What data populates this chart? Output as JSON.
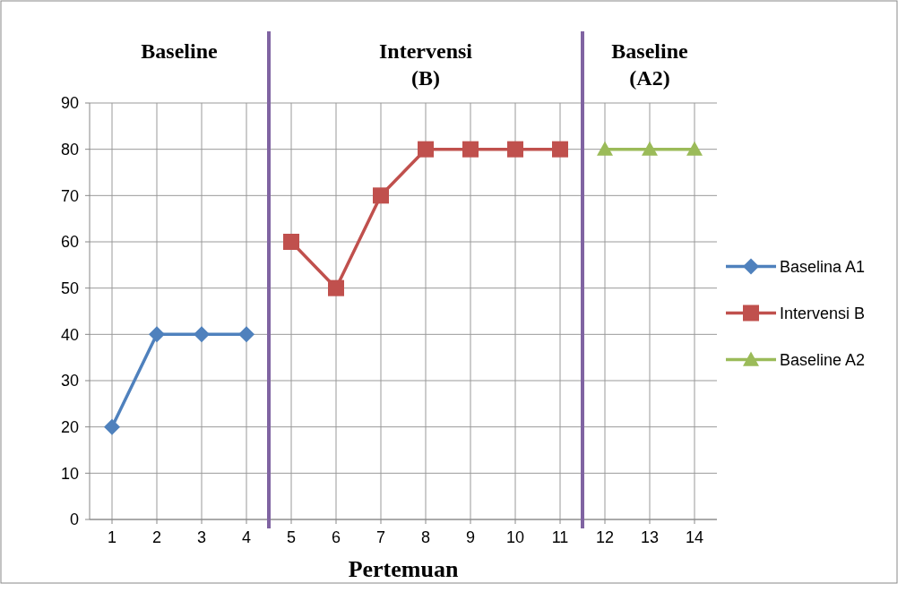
{
  "chart_data": {
    "type": "line",
    "xlabel": "Pertemuan",
    "x": [
      1,
      2,
      3,
      4,
      5,
      6,
      7,
      8,
      9,
      10,
      11,
      12,
      13,
      14
    ],
    "xlim": [
      0.5,
      14.5
    ],
    "xticks": [
      1,
      2,
      3,
      4,
      5,
      6,
      7,
      8,
      9,
      10,
      11,
      12,
      13,
      14
    ],
    "ylim": [
      0,
      90
    ],
    "yticks": [
      0,
      10,
      20,
      30,
      40,
      50,
      60,
      70,
      80,
      90
    ],
    "series": [
      {
        "name": "Baselina A1",
        "color": "#4f81bd",
        "marker": "diamond",
        "values": [
          20,
          40,
          40,
          40,
          null,
          null,
          null,
          null,
          null,
          null,
          null,
          null,
          null,
          null
        ]
      },
      {
        "name": "Intervensi B",
        "color": "#c0504d",
        "marker": "square",
        "values": [
          null,
          null,
          null,
          null,
          60,
          50,
          70,
          80,
          80,
          80,
          80,
          null,
          null,
          null
        ]
      },
      {
        "name": "Baseline A2",
        "color": "#9bbb59",
        "marker": "triangle",
        "values": [
          null,
          null,
          null,
          null,
          null,
          null,
          null,
          null,
          null,
          null,
          null,
          80,
          80,
          80
        ]
      }
    ],
    "ref_lines": [
      {
        "axis": "x",
        "value": 4.5,
        "color": "#8064a2"
      },
      {
        "axis": "x",
        "value": 11.5,
        "color": "#8064a2"
      }
    ],
    "annotations": [
      "Baseline",
      "Intervensi\n(B)",
      "Baseline\n(A2)"
    ],
    "grid": true,
    "legend": "right"
  }
}
